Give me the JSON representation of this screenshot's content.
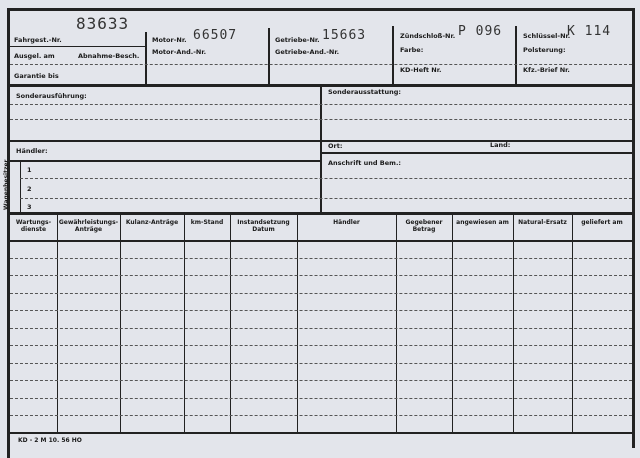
{
  "header": {
    "fahrgest_label": "Fahrgest.-Nr.",
    "fahrgest_value": "83633",
    "ausgel_label": "Ausgel. am",
    "abnahme_label": "Abnahme-Besch.",
    "garantie_label": "Garantie bis",
    "motor_label": "Motor-Nr.",
    "motor_value": "66507",
    "motor_aend_label": "Motor-And.-Nr.",
    "getriebe_label": "Getriebe-Nr.",
    "getriebe_value": "15663",
    "getriebe_aend_label": "Getriebe-And.-Nr.",
    "zuendschloss_label": "Zündschloß-Nr.",
    "zuendschloss_value": "P 096",
    "farbe_label": "Farbe:",
    "kd_heft_label": "KD-Heft Nr.",
    "schluessel_label": "Schlüssel-Nr.",
    "schluessel_value": "K 114",
    "polsterung_label": "Polsterung:",
    "kfz_brief_label": "Kfz.-Brief Nr."
  },
  "middle": {
    "sonderausfuehrung_label": "Sonderausführung:",
    "sonderausstattung_label": "Sonderausstattung:",
    "haendler_label": "Händler:",
    "ort_label": "Ort:",
    "land_label": "Land:",
    "wagenbesitzer_label": "Wagenbesitzer",
    "owners": [
      "1",
      "2",
      "3"
    ],
    "anschrift_label": "Anschrift und Bem.:"
  },
  "table": {
    "columns": [
      "Wartungs-dienste",
      "Gewährleistungs-Anträge",
      "Kulanz-Anträge",
      "km-Stand",
      "Instandsetzung Datum",
      "Händler",
      "Gegebener Betrag",
      "angewiesen am",
      "Natural-Ersatz",
      "geliefert am"
    ],
    "row_count": 11
  },
  "footer": {
    "form_code": "KD - 2 M  10. 56  HO"
  }
}
